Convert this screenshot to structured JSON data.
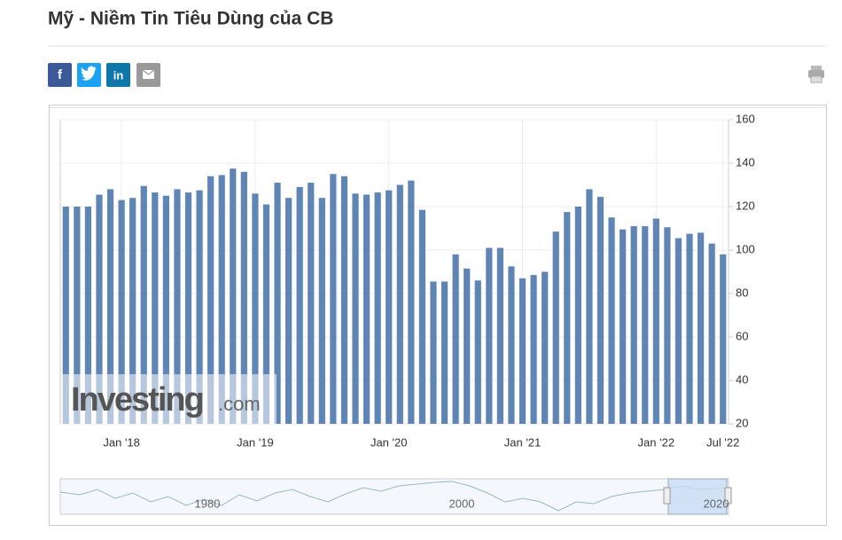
{
  "page": {
    "title": "Mỹ - Niềm Tin Tiêu Dùng của CB",
    "share": [
      "f",
      "in"
    ],
    "watermark": [
      "Investing",
      ".com"
    ],
    "navigator": {
      "labels": [
        "1980",
        "2000",
        "2020"
      ]
    }
  },
  "chart_data": {
    "type": "bar",
    "categories": [
      null,
      null,
      null,
      null,
      null,
      "Jan '18",
      null,
      null,
      null,
      null,
      null,
      null,
      null,
      null,
      null,
      null,
      null,
      "Jan '19",
      null,
      null,
      null,
      null,
      null,
      null,
      null,
      null,
      null,
      null,
      null,
      "Jan '20",
      null,
      null,
      null,
      null,
      null,
      null,
      null,
      null,
      null,
      null,
      null,
      "Jan '21",
      null,
      null,
      null,
      null,
      null,
      null,
      null,
      null,
      null,
      null,
      null,
      "Jan '22",
      null,
      null,
      null,
      null,
      null,
      "Jul '22"
    ],
    "values": [
      120,
      120,
      120,
      125.5,
      128,
      123,
      124,
      129.5,
      126.5,
      125,
      128,
      126.5,
      127.5,
      134,
      134.5,
      137.5,
      136,
      126,
      121,
      131,
      124,
      129,
      131,
      124,
      135,
      134,
      126,
      125.5,
      126.5,
      127.5,
      130,
      132,
      118.5,
      85.5,
      85.5,
      98,
      91.5,
      86,
      101,
      101,
      92.5,
      87,
      88.5,
      90,
      108.5,
      117.5,
      120,
      128,
      124.5,
      115,
      109.5,
      111,
      111,
      114.5,
      110.5,
      105.5,
      107.5,
      108,
      103,
      98
    ],
    "color": "#5f85b5",
    "ylim": [
      20,
      160
    ],
    "yticks": [
      20,
      40,
      60,
      80,
      100,
      120,
      140,
      160
    ],
    "grid": true,
    "y_axis_side": "right"
  }
}
